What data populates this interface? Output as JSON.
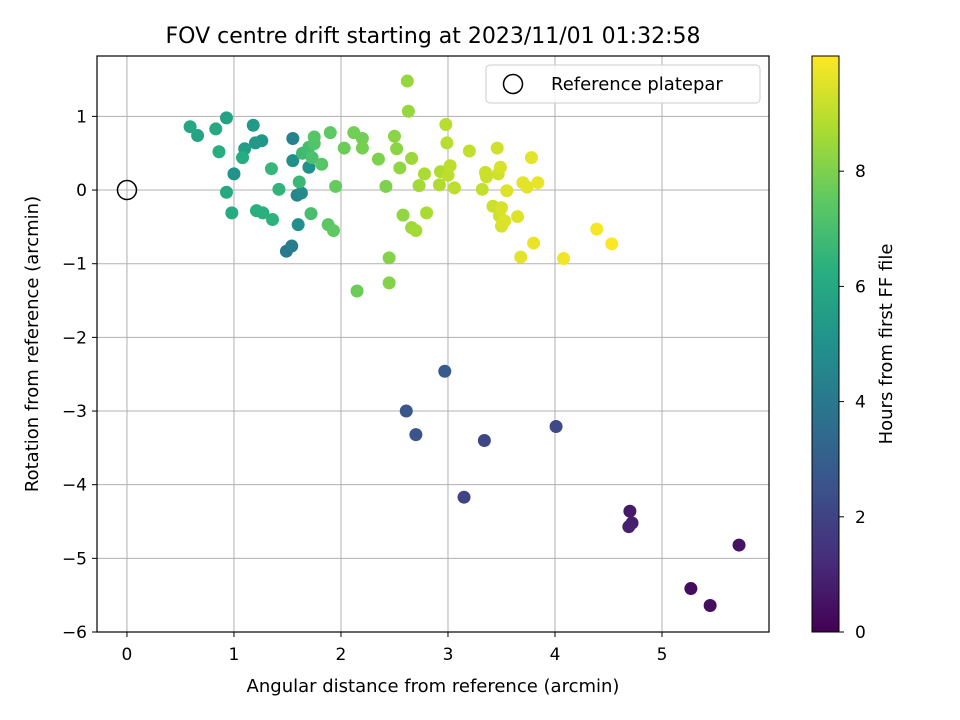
{
  "chart_data": {
    "type": "scatter",
    "title": "FOV centre drift starting at 2023/11/01 01:32:58",
    "xlabel": "Angular distance from reference (arcmin)",
    "ylabel": "Rotation from reference (arcmin)",
    "xlim": [
      -0.28,
      6.0
    ],
    "ylim": [
      -6.0,
      1.82
    ],
    "x_ticks": [
      0,
      1,
      2,
      3,
      4,
      5
    ],
    "y_ticks": [
      1,
      0,
      -1,
      -2,
      -3,
      -4,
      -5,
      -6
    ],
    "x_tick_labels": [
      "0",
      "1",
      "2",
      "3",
      "4",
      "5"
    ],
    "y_tick_labels": [
      "1",
      "0",
      "−1",
      "−2",
      "−3",
      "−4",
      "−5",
      "−6"
    ],
    "grid": true,
    "legend": {
      "position": "top-right",
      "label": "Reference platepar"
    },
    "reference_point": {
      "x": 0,
      "y": 0
    },
    "colorbar": {
      "label": "Hours from first FF file",
      "colormap": "viridis",
      "range": [
        0,
        10.0
      ],
      "ticks": [
        0,
        2,
        4,
        6,
        8
      ],
      "tick_labels": [
        "0",
        "2",
        "4",
        "6",
        "8"
      ]
    },
    "points": [
      {
        "x": 5.27,
        "y": -5.41,
        "c": 0.3
      },
      {
        "x": 5.45,
        "y": -5.64,
        "c": 0.4
      },
      {
        "x": 5.72,
        "y": -4.82,
        "c": 0.5
      },
      {
        "x": 4.7,
        "y": -4.36,
        "c": 0.7
      },
      {
        "x": 4.72,
        "y": -4.52,
        "c": 0.8
      },
      {
        "x": 4.69,
        "y": -4.57,
        "c": 0.9
      },
      {
        "x": 3.15,
        "y": -4.17,
        "c": 2.0
      },
      {
        "x": 3.34,
        "y": -3.4,
        "c": 2.1
      },
      {
        "x": 4.01,
        "y": -3.21,
        "c": 2.2
      },
      {
        "x": 2.7,
        "y": -3.32,
        "c": 2.6
      },
      {
        "x": 2.61,
        "y": -3.0,
        "c": 2.7
      },
      {
        "x": 2.97,
        "y": -2.46,
        "c": 2.9
      },
      {
        "x": 1.49,
        "y": -0.83,
        "c": 4.0
      },
      {
        "x": 1.54,
        "y": -0.76,
        "c": 4.2
      },
      {
        "x": 1.55,
        "y": 0.7,
        "c": 4.4
      },
      {
        "x": 1.59,
        "y": -0.07,
        "c": 4.6
      },
      {
        "x": 1.63,
        "y": -0.04,
        "c": 4.7
      },
      {
        "x": 1.6,
        "y": -0.47,
        "c": 4.9
      },
      {
        "x": 1.55,
        "y": 0.4,
        "c": 4.9
      },
      {
        "x": 1.7,
        "y": 0.31,
        "c": 5.0
      },
      {
        "x": 1.0,
        "y": 0.22,
        "c": 5.1
      },
      {
        "x": 1.26,
        "y": 0.67,
        "c": 5.2
      },
      {
        "x": 1.2,
        "y": 0.64,
        "c": 5.3
      },
      {
        "x": 1.18,
        "y": 0.88,
        "c": 5.4
      },
      {
        "x": 1.1,
        "y": 0.56,
        "c": 5.6
      },
      {
        "x": 0.93,
        "y": 0.98,
        "c": 5.7
      },
      {
        "x": 0.66,
        "y": 0.74,
        "c": 5.8
      },
      {
        "x": 0.59,
        "y": 0.86,
        "c": 5.9
      },
      {
        "x": 0.83,
        "y": 0.83,
        "c": 6.0
      },
      {
        "x": 0.93,
        "y": -0.03,
        "c": 6.0
      },
      {
        "x": 0.98,
        "y": -0.31,
        "c": 6.1
      },
      {
        "x": 1.08,
        "y": 0.44,
        "c": 6.1
      },
      {
        "x": 0.86,
        "y": 0.52,
        "c": 6.2
      },
      {
        "x": 1.21,
        "y": -0.28,
        "c": 6.3
      },
      {
        "x": 1.27,
        "y": -0.31,
        "c": 6.3
      },
      {
        "x": 1.36,
        "y": -0.4,
        "c": 6.4
      },
      {
        "x": 1.42,
        "y": 0.01,
        "c": 6.5
      },
      {
        "x": 1.35,
        "y": 0.29,
        "c": 6.6
      },
      {
        "x": 1.61,
        "y": 0.11,
        "c": 6.7
      },
      {
        "x": 1.64,
        "y": 0.5,
        "c": 6.8
      },
      {
        "x": 1.7,
        "y": 0.58,
        "c": 6.9
      },
      {
        "x": 1.72,
        "y": -0.32,
        "c": 7.0
      },
      {
        "x": 1.73,
        "y": 0.44,
        "c": 7.1
      },
      {
        "x": 1.75,
        "y": 0.63,
        "c": 7.2
      },
      {
        "x": 1.75,
        "y": 0.72,
        "c": 7.3
      },
      {
        "x": 1.82,
        "y": 0.35,
        "c": 7.3
      },
      {
        "x": 1.88,
        "y": -0.47,
        "c": 7.4
      },
      {
        "x": 1.93,
        "y": -0.55,
        "c": 7.5
      },
      {
        "x": 1.9,
        "y": 0.78,
        "c": 7.5
      },
      {
        "x": 1.95,
        "y": 0.05,
        "c": 7.6
      },
      {
        "x": 2.03,
        "y": 0.57,
        "c": 7.7
      },
      {
        "x": 2.15,
        "y": -1.37,
        "c": 7.7
      },
      {
        "x": 2.12,
        "y": 0.78,
        "c": 7.8
      },
      {
        "x": 2.2,
        "y": 0.7,
        "c": 7.8
      },
      {
        "x": 2.2,
        "y": 0.57,
        "c": 7.9
      },
      {
        "x": 2.35,
        "y": 0.42,
        "c": 8.0
      },
      {
        "x": 2.42,
        "y": 0.05,
        "c": 8.0
      },
      {
        "x": 2.45,
        "y": -0.92,
        "c": 8.1
      },
      {
        "x": 2.45,
        "y": -1.26,
        "c": 8.1
      },
      {
        "x": 2.5,
        "y": 0.73,
        "c": 8.2
      },
      {
        "x": 2.52,
        "y": 0.56,
        "c": 8.2
      },
      {
        "x": 2.55,
        "y": 0.3,
        "c": 8.3
      },
      {
        "x": 2.58,
        "y": -0.34,
        "c": 8.3
      },
      {
        "x": 2.62,
        "y": 1.48,
        "c": 8.4
      },
      {
        "x": 2.63,
        "y": 1.07,
        "c": 8.4
      },
      {
        "x": 2.66,
        "y": 0.43,
        "c": 8.5
      },
      {
        "x": 2.66,
        "y": -0.51,
        "c": 8.5
      },
      {
        "x": 2.7,
        "y": -0.55,
        "c": 8.6
      },
      {
        "x": 2.73,
        "y": 0.06,
        "c": 8.6
      },
      {
        "x": 2.78,
        "y": 0.22,
        "c": 8.7
      },
      {
        "x": 2.8,
        "y": -0.31,
        "c": 8.7
      },
      {
        "x": 2.92,
        "y": 0.07,
        "c": 8.8
      },
      {
        "x": 2.93,
        "y": 0.25,
        "c": 8.8
      },
      {
        "x": 2.98,
        "y": 0.89,
        "c": 8.9
      },
      {
        "x": 2.99,
        "y": 0.64,
        "c": 8.9
      },
      {
        "x": 3.0,
        "y": 0.2,
        "c": 9.0
      },
      {
        "x": 3.02,
        "y": 0.33,
        "c": 9.0
      },
      {
        "x": 3.06,
        "y": 0.03,
        "c": 9.0
      },
      {
        "x": 3.2,
        "y": 0.53,
        "c": 9.1
      },
      {
        "x": 3.32,
        "y": 0.01,
        "c": 9.1
      },
      {
        "x": 3.35,
        "y": 0.24,
        "c": 9.2
      },
      {
        "x": 3.36,
        "y": 0.18,
        "c": 9.2
      },
      {
        "x": 3.42,
        "y": -0.22,
        "c": 9.2
      },
      {
        "x": 3.46,
        "y": 0.57,
        "c": 9.3
      },
      {
        "x": 3.47,
        "y": 0.22,
        "c": 9.3
      },
      {
        "x": 3.48,
        "y": -0.35,
        "c": 9.3
      },
      {
        "x": 3.49,
        "y": 0.31,
        "c": 9.4
      },
      {
        "x": 3.5,
        "y": -0.24,
        "c": 9.4
      },
      {
        "x": 3.5,
        "y": -0.49,
        "c": 9.4
      },
      {
        "x": 3.55,
        "y": -0.01,
        "c": 9.5
      },
      {
        "x": 3.53,
        "y": -0.42,
        "c": 9.5
      },
      {
        "x": 3.65,
        "y": -0.36,
        "c": 9.5
      },
      {
        "x": 3.7,
        "y": 0.1,
        "c": 9.6
      },
      {
        "x": 3.68,
        "y": -0.91,
        "c": 9.6
      },
      {
        "x": 3.74,
        "y": 0.04,
        "c": 9.6
      },
      {
        "x": 3.78,
        "y": 0.44,
        "c": 9.6
      },
      {
        "x": 3.8,
        "y": -0.72,
        "c": 9.7
      },
      {
        "x": 3.84,
        "y": 0.1,
        "c": 9.7
      },
      {
        "x": 4.08,
        "y": -0.93,
        "c": 9.8
      },
      {
        "x": 4.39,
        "y": -0.53,
        "c": 9.9
      },
      {
        "x": 4.53,
        "y": -0.73,
        "c": 10.0
      }
    ]
  }
}
